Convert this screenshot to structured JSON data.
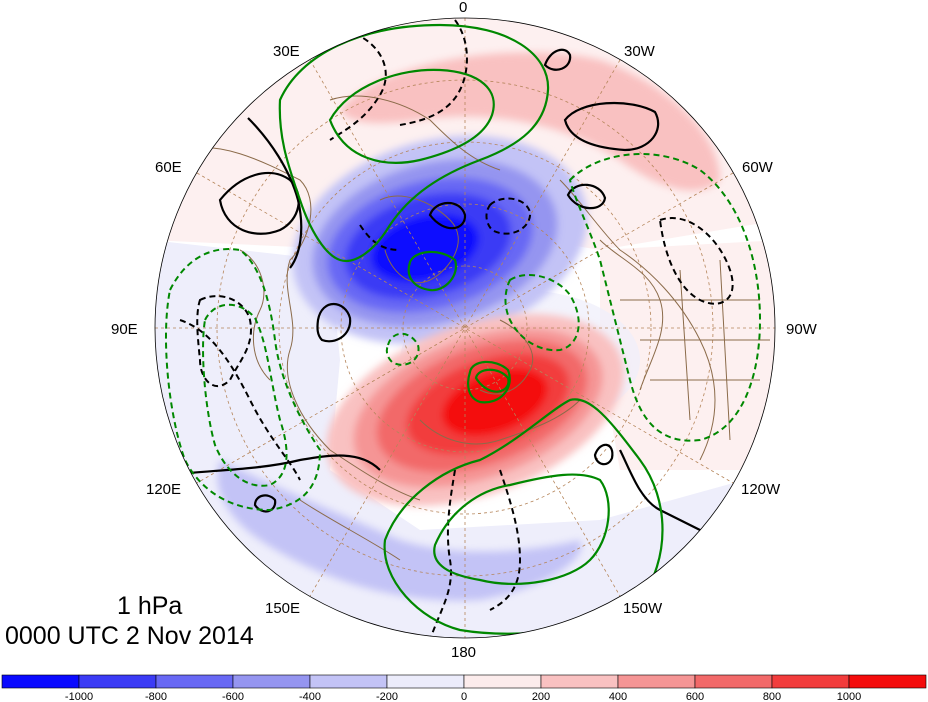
{
  "title": {
    "level": "1 hPa",
    "time": "0000 UTC 2 Nov 2014"
  },
  "projection": "north-polar-stereographic",
  "longitude_labels": [
    "0",
    "30W",
    "60W",
    "90W",
    "120W",
    "150W",
    "180",
    "150E",
    "120E",
    "90E",
    "60E",
    "30E"
  ],
  "colorbar": {
    "colors": [
      "#0a0aff",
      "#3b3bf5",
      "#6868f4",
      "#9595f0",
      "#c3c3f6",
      "#ececfb",
      "#fcecec",
      "#f9c1c1",
      "#f59595",
      "#f26969",
      "#f23c3c",
      "#f40c0c"
    ],
    "tick_labels": [
      "-1000",
      "-800",
      "-600",
      "-400",
      "-200",
      "0",
      "200",
      "400",
      "600",
      "800",
      "1000"
    ]
  },
  "contour_styles": {
    "solid_black": "#000000",
    "green": "#008800",
    "coastline": "#8b6b4a",
    "graticule": "#b5855a"
  }
}
